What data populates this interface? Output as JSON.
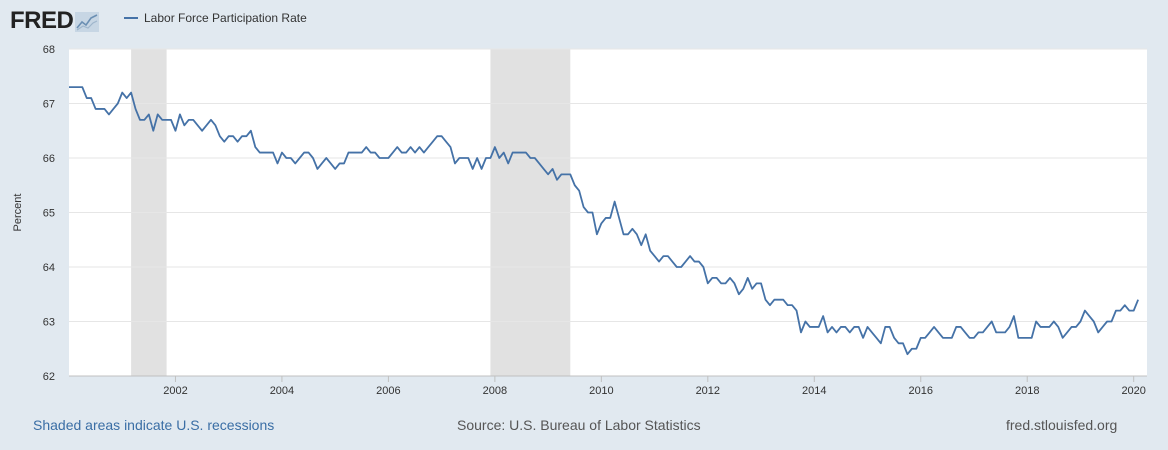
{
  "header": {
    "logo_text": "FRED",
    "logo_icon": "chart-trend-icon"
  },
  "colors": {
    "background": "#e1e9f0",
    "plot_background": "#ffffff",
    "line": "#4572a7",
    "recession": "#e1e1e1",
    "grid": "#e6e6e6"
  },
  "chart_data": {
    "type": "line",
    "title": "",
    "xlabel": "",
    "ylabel": "Percent",
    "xlim": [
      2000.0,
      2020.25
    ],
    "ylim": [
      62,
      68
    ],
    "yticks": [
      62,
      63,
      64,
      65,
      66,
      67,
      68
    ],
    "xticks": [
      "2002",
      "2004",
      "2006",
      "2008",
      "2010",
      "2012",
      "2014",
      "2016",
      "2018",
      "2020"
    ],
    "grid": true,
    "legend": "top-left",
    "recessions": [
      {
        "start": "2001-03",
        "end": "2001-11"
      },
      {
        "start": "2007-12",
        "end": "2009-06"
      }
    ],
    "series": [
      {
        "name": "Labor Force Participation Rate",
        "start": "2000-01",
        "frequency": "monthly",
        "values": [
          67.3,
          67.3,
          67.3,
          67.3,
          67.1,
          67.1,
          66.9,
          66.9,
          66.9,
          66.8,
          66.9,
          67.0,
          67.2,
          67.1,
          67.2,
          66.9,
          66.7,
          66.7,
          66.8,
          66.5,
          66.8,
          66.7,
          66.7,
          66.7,
          66.5,
          66.8,
          66.6,
          66.7,
          66.7,
          66.6,
          66.5,
          66.6,
          66.7,
          66.6,
          66.4,
          66.3,
          66.4,
          66.4,
          66.3,
          66.4,
          66.4,
          66.5,
          66.2,
          66.1,
          66.1,
          66.1,
          66.1,
          65.9,
          66.1,
          66.0,
          66.0,
          65.9,
          66.0,
          66.1,
          66.1,
          66.0,
          65.8,
          65.9,
          66.0,
          65.9,
          65.8,
          65.9,
          65.9,
          66.1,
          66.1,
          66.1,
          66.1,
          66.2,
          66.1,
          66.1,
          66.0,
          66.0,
          66.0,
          66.1,
          66.2,
          66.1,
          66.1,
          66.2,
          66.1,
          66.2,
          66.1,
          66.2,
          66.3,
          66.4,
          66.4,
          66.3,
          66.2,
          65.9,
          66.0,
          66.0,
          66.0,
          65.8,
          66.0,
          65.8,
          66.0,
          66.0,
          66.2,
          66.0,
          66.1,
          65.9,
          66.1,
          66.1,
          66.1,
          66.1,
          66.0,
          66.0,
          65.9,
          65.8,
          65.7,
          65.8,
          65.6,
          65.7,
          65.7,
          65.7,
          65.5,
          65.4,
          65.1,
          65.0,
          65.0,
          64.6,
          64.8,
          64.9,
          64.9,
          65.2,
          64.9,
          64.6,
          64.6,
          64.7,
          64.6,
          64.4,
          64.6,
          64.3,
          64.2,
          64.1,
          64.2,
          64.2,
          64.1,
          64.0,
          64.0,
          64.1,
          64.2,
          64.1,
          64.1,
          64.0,
          63.7,
          63.8,
          63.8,
          63.7,
          63.7,
          63.8,
          63.7,
          63.5,
          63.6,
          63.8,
          63.6,
          63.7,
          63.7,
          63.4,
          63.3,
          63.4,
          63.4,
          63.4,
          63.3,
          63.3,
          63.2,
          62.8,
          63.0,
          62.9,
          62.9,
          62.9,
          63.1,
          62.8,
          62.9,
          62.8,
          62.9,
          62.9,
          62.8,
          62.9,
          62.9,
          62.7,
          62.9,
          62.8,
          62.7,
          62.6,
          62.9,
          62.9,
          62.7,
          62.6,
          62.6,
          62.4,
          62.5,
          62.5,
          62.7,
          62.7,
          62.8,
          62.9,
          62.8,
          62.7,
          62.7,
          62.7,
          62.9,
          62.9,
          62.8,
          62.7,
          62.7,
          62.8,
          62.8,
          62.9,
          63.0,
          62.8,
          62.8,
          62.8,
          62.9,
          63.1,
          62.7,
          62.7,
          62.7,
          62.7,
          63.0,
          62.9,
          62.9,
          62.9,
          63.0,
          62.9,
          62.7,
          62.8,
          62.9,
          62.9,
          63.0,
          63.2,
          63.1,
          63.0,
          62.8,
          62.9,
          63.0,
          63.0,
          63.2,
          63.2,
          63.3,
          63.2,
          63.2,
          63.4
        ]
      }
    ]
  },
  "footer": {
    "recessions_note": "Shaded areas indicate U.S. recessions",
    "source": "Source: U.S. Bureau of Labor Statistics",
    "site": "fred.stlouisfed.org"
  }
}
